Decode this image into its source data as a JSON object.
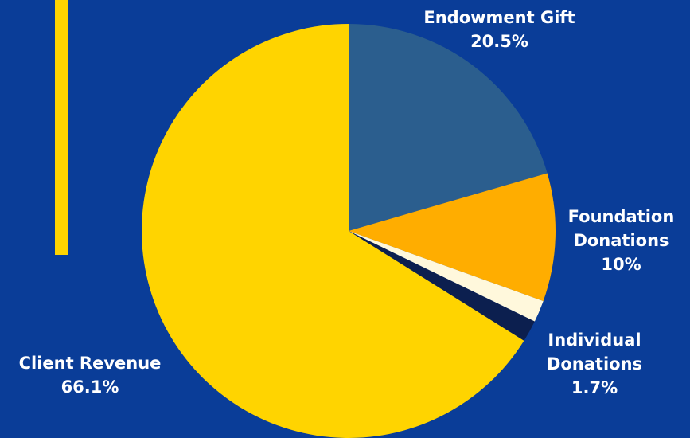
{
  "chart_data": {
    "type": "pie",
    "title": "",
    "slices": [
      {
        "label_lines": [
          "Endowment Gift"
        ],
        "pct_text": "20.5%",
        "value": 20.5,
        "color": "#2b5e8e"
      },
      {
        "label_lines": [
          "Foundation",
          "Donations"
        ],
        "pct_text": "10%",
        "value": 10.0,
        "color": "#ffad00"
      },
      {
        "label_lines": [],
        "pct_text": "",
        "value": 1.7,
        "color": "#fff8dc"
      },
      {
        "label_lines": [
          "Individual",
          "Donations"
        ],
        "pct_text": "1.7%",
        "value": 1.7,
        "color": "#0c1f4f"
      },
      {
        "label_lines": [
          "Client Revenue"
        ],
        "pct_text": "66.1%",
        "value": 66.1,
        "color": "#ffd400"
      }
    ],
    "start_angle_deg": 0,
    "direction": "clockwise"
  },
  "colors": {
    "background": "#0a3d98",
    "accent_bar": "#ffd400",
    "label_text": "#ffffff"
  }
}
